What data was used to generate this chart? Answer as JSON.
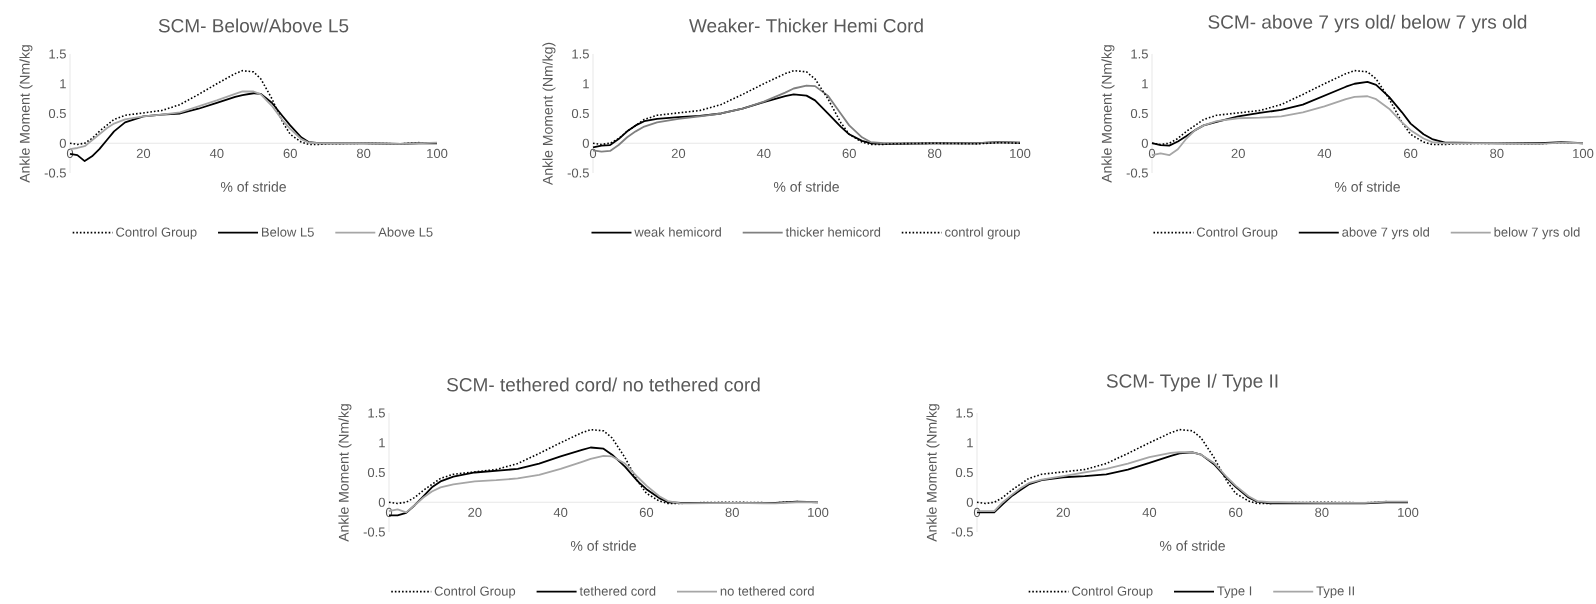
{
  "chart_data": [
    {
      "type": "line",
      "title": "SCM- Below/Above L5",
      "xlabel": "% of stride",
      "ylabel": "Ankle Moment (Nm/kg",
      "xlim": [
        0,
        100
      ],
      "ylim": [
        -0.5,
        1.5
      ],
      "xticks": [
        0,
        20,
        40,
        60,
        80,
        100
      ],
      "yticks": [
        -0.5,
        0,
        0.5,
        1,
        1.5
      ],
      "legend": "bottom",
      "x": [
        0,
        2,
        4,
        6,
        8,
        10,
        12,
        15,
        20,
        25,
        30,
        35,
        40,
        45,
        47,
        50,
        52,
        55,
        58,
        60,
        63,
        65,
        68,
        70,
        80,
        90,
        95,
        100
      ],
      "series": [
        {
          "name": "Control Group",
          "color": "#000000",
          "line_style": "dotted",
          "values": [
            0,
            -0.02,
            0.0,
            0.08,
            0.2,
            0.3,
            0.4,
            0.47,
            0.51,
            0.55,
            0.65,
            0.82,
            1.0,
            1.17,
            1.22,
            1.2,
            1.08,
            0.75,
            0.35,
            0.15,
            0.02,
            -0.02,
            -0.02,
            -0.01,
            0,
            -0.01,
            0.01,
            0
          ]
        },
        {
          "name": "Below L5",
          "color": "#000000",
          "line_style": "solid",
          "values": [
            -0.18,
            -0.2,
            -0.3,
            -0.22,
            -0.1,
            0.05,
            0.2,
            0.35,
            0.45,
            0.48,
            0.5,
            0.58,
            0.68,
            0.78,
            0.81,
            0.84,
            0.83,
            0.68,
            0.45,
            0.3,
            0.1,
            0.02,
            0,
            0,
            0,
            -0.01,
            0,
            0
          ]
        },
        {
          "name": "Above L5",
          "color": "#a6a6a6",
          "line_style": "solid",
          "values": [
            -0.1,
            -0.08,
            -0.05,
            0.05,
            0.15,
            0.25,
            0.33,
            0.4,
            0.45,
            0.48,
            0.52,
            0.62,
            0.72,
            0.83,
            0.87,
            0.87,
            0.82,
            0.63,
            0.38,
            0.24,
            0.07,
            0.01,
            0,
            0,
            0,
            -0.01,
            0,
            0.01
          ]
        }
      ]
    },
    {
      "type": "line",
      "title": "Weaker- Thicker Hemi Cord",
      "xlabel": "% of stride",
      "ylabel": "Ankle Moment (Nm/kg)",
      "xlim": [
        0,
        100
      ],
      "ylim": [
        -0.5,
        1.5
      ],
      "xticks": [
        0,
        20,
        40,
        60,
        80,
        100
      ],
      "yticks": [
        -0.5,
        0,
        0.5,
        1,
        1.5
      ],
      "legend": "bottom",
      "x": [
        0,
        2,
        4,
        6,
        8,
        10,
        12,
        15,
        20,
        25,
        30,
        35,
        40,
        45,
        47,
        50,
        52,
        55,
        58,
        60,
        63,
        65,
        68,
        70,
        80,
        90,
        95,
        100
      ],
      "series": [
        {
          "name": "weak hemicord",
          "color": "#000000",
          "line_style": "solid",
          "values": [
            -0.07,
            -0.04,
            -0.03,
            0.07,
            0.2,
            0.3,
            0.37,
            0.41,
            0.44,
            0.46,
            0.5,
            0.58,
            0.69,
            0.79,
            0.82,
            0.8,
            0.72,
            0.5,
            0.28,
            0.15,
            0.04,
            0,
            -0.01,
            -0.01,
            0,
            0,
            0.02,
            0.01
          ]
        },
        {
          "name": "thicker hemicord",
          "color": "#808080",
          "line_style": "solid",
          "values": [
            -0.12,
            -0.14,
            -0.13,
            -0.03,
            0.1,
            0.2,
            0.28,
            0.35,
            0.41,
            0.45,
            0.5,
            0.58,
            0.7,
            0.85,
            0.92,
            0.97,
            0.96,
            0.8,
            0.5,
            0.3,
            0.1,
            0.02,
            0,
            0,
            0,
            0,
            0.02,
            0.01
          ]
        },
        {
          "name": "control group",
          "color": "#000000",
          "line_style": "dotted",
          "values": [
            0,
            -0.02,
            0.0,
            0.08,
            0.2,
            0.3,
            0.4,
            0.47,
            0.51,
            0.55,
            0.65,
            0.82,
            1.0,
            1.17,
            1.22,
            1.2,
            1.08,
            0.75,
            0.35,
            0.15,
            0.02,
            -0.02,
            -0.02,
            -0.01,
            0,
            -0.01,
            0.01,
            0
          ]
        }
      ]
    },
    {
      "type": "line",
      "title": "SCM- above 7 yrs old/ below 7 yrs old",
      "xlabel": "% of stride",
      "ylabel": "Ankle Moment (Nm/kg",
      "xlim": [
        0,
        100
      ],
      "ylim": [
        -0.5,
        1.5
      ],
      "xticks": [
        0,
        20,
        40,
        60,
        80,
        100
      ],
      "yticks": [
        -0.5,
        0,
        0.5,
        1,
        1.5
      ],
      "legend": "bottom",
      "x": [
        0,
        2,
        4,
        6,
        8,
        10,
        12,
        15,
        20,
        25,
        30,
        35,
        40,
        45,
        47,
        50,
        52,
        55,
        58,
        60,
        63,
        65,
        68,
        70,
        80,
        90,
        95,
        100
      ],
      "series": [
        {
          "name": "Control Group",
          "color": "#000000",
          "line_style": "dotted",
          "values": [
            0,
            -0.02,
            0.0,
            0.08,
            0.2,
            0.3,
            0.4,
            0.47,
            0.51,
            0.55,
            0.65,
            0.82,
            1.0,
            1.17,
            1.22,
            1.2,
            1.08,
            0.75,
            0.35,
            0.15,
            0.02,
            -0.02,
            -0.02,
            -0.01,
            0,
            -0.01,
            0.01,
            0
          ]
        },
        {
          "name": "above 7 yrs old",
          "color": "#000000",
          "line_style": "solid",
          "values": [
            0,
            -0.03,
            -0.04,
            0.03,
            0.12,
            0.22,
            0.3,
            0.36,
            0.45,
            0.51,
            0.56,
            0.65,
            0.8,
            0.95,
            1.0,
            1.03,
            0.98,
            0.78,
            0.52,
            0.33,
            0.15,
            0.07,
            0.01,
            0.01,
            0,
            0,
            0.02,
            0
          ]
        },
        {
          "name": "below 7 yrs old",
          "color": "#a6a6a6",
          "line_style": "solid",
          "values": [
            -0.2,
            -0.17,
            -0.2,
            -0.1,
            0.08,
            0.22,
            0.3,
            0.37,
            0.42,
            0.43,
            0.45,
            0.52,
            0.62,
            0.74,
            0.78,
            0.79,
            0.74,
            0.58,
            0.35,
            0.22,
            0.08,
            0.02,
            0,
            0,
            0,
            -0.01,
            0.01,
            0
          ]
        }
      ]
    },
    {
      "type": "line",
      "title": "SCM- tethered cord/ no tethered cord",
      "xlabel": "% of stride",
      "ylabel": "Ankle Moment (Nm/kg",
      "xlim": [
        0,
        100
      ],
      "ylim": [
        -0.5,
        1.5
      ],
      "xticks": [
        0,
        20,
        40,
        60,
        80,
        100
      ],
      "yticks": [
        -0.5,
        0,
        0.5,
        1,
        1.5
      ],
      "legend": "bottom",
      "x": [
        0,
        2,
        4,
        6,
        8,
        10,
        12,
        15,
        20,
        25,
        30,
        35,
        40,
        45,
        47,
        50,
        52,
        55,
        58,
        60,
        63,
        65,
        68,
        70,
        80,
        90,
        95,
        100
      ],
      "series": [
        {
          "name": "Control Group",
          "color": "#000000",
          "line_style": "dotted",
          "values": [
            0,
            -0.02,
            0.0,
            0.08,
            0.2,
            0.3,
            0.4,
            0.47,
            0.51,
            0.55,
            0.65,
            0.82,
            1.0,
            1.17,
            1.22,
            1.2,
            1.08,
            0.75,
            0.35,
            0.15,
            0.02,
            -0.02,
            -0.02,
            -0.01,
            0,
            -0.01,
            0.01,
            0
          ]
        },
        {
          "name": "tethered cord",
          "color": "#000000",
          "line_style": "solid",
          "values": [
            -0.22,
            -0.22,
            -0.18,
            -0.05,
            0.1,
            0.25,
            0.35,
            0.43,
            0.5,
            0.53,
            0.56,
            0.65,
            0.77,
            0.88,
            0.92,
            0.9,
            0.8,
            0.6,
            0.35,
            0.22,
            0.07,
            0,
            -0.01,
            -0.01,
            -0.01,
            -0.01,
            0.01,
            0
          ]
        },
        {
          "name": "no tethered cord",
          "color": "#a6a6a6",
          "line_style": "solid",
          "values": [
            -0.15,
            -0.12,
            -0.17,
            -0.05,
            0.08,
            0.18,
            0.25,
            0.3,
            0.35,
            0.37,
            0.4,
            0.46,
            0.56,
            0.68,
            0.73,
            0.78,
            0.77,
            0.65,
            0.42,
            0.28,
            0.1,
            0.02,
            -0.02,
            -0.02,
            -0.01,
            -0.02,
            0,
            0
          ]
        }
      ]
    },
    {
      "type": "line",
      "title": "SCM- Type I/ Type II",
      "xlabel": "% of stride",
      "ylabel": "Ankle Moment (Nm/kg",
      "xlim": [
        0,
        100
      ],
      "ylim": [
        -0.5,
        1.5
      ],
      "xticks": [
        0,
        20,
        40,
        60,
        80,
        100
      ],
      "yticks": [
        -0.5,
        0,
        0.5,
        1,
        1.5
      ],
      "legend": "bottom",
      "x": [
        0,
        2,
        4,
        6,
        8,
        10,
        12,
        15,
        20,
        25,
        30,
        35,
        40,
        45,
        47,
        50,
        52,
        55,
        58,
        60,
        63,
        65,
        68,
        70,
        80,
        90,
        95,
        100
      ],
      "series": [
        {
          "name": "Control Group",
          "color": "#000000",
          "line_style": "dotted",
          "values": [
            0,
            -0.02,
            0.0,
            0.08,
            0.2,
            0.3,
            0.4,
            0.47,
            0.51,
            0.55,
            0.65,
            0.82,
            1.0,
            1.17,
            1.22,
            1.2,
            1.08,
            0.75,
            0.35,
            0.15,
            0.02,
            -0.02,
            -0.02,
            -0.01,
            0,
            -0.01,
            0.01,
            0
          ]
        },
        {
          "name": "Type I",
          "color": "#000000",
          "line_style": "solid",
          "values": [
            -0.17,
            -0.17,
            -0.17,
            -0.03,
            0.1,
            0.2,
            0.3,
            0.37,
            0.42,
            0.44,
            0.47,
            0.55,
            0.66,
            0.78,
            0.82,
            0.84,
            0.8,
            0.64,
            0.4,
            0.26,
            0.08,
            0.01,
            -0.02,
            -0.02,
            -0.02,
            -0.02,
            0,
            0
          ]
        },
        {
          "name": "Type II",
          "color": "#a6a6a6",
          "line_style": "solid",
          "values": [
            -0.15,
            -0.15,
            -0.15,
            0,
            0.12,
            0.23,
            0.32,
            0.38,
            0.44,
            0.5,
            0.56,
            0.65,
            0.76,
            0.83,
            0.84,
            0.84,
            0.8,
            0.66,
            0.42,
            0.28,
            0.1,
            0.02,
            0,
            0,
            -0.01,
            -0.01,
            0.01,
            0.01
          ]
        }
      ]
    }
  ]
}
